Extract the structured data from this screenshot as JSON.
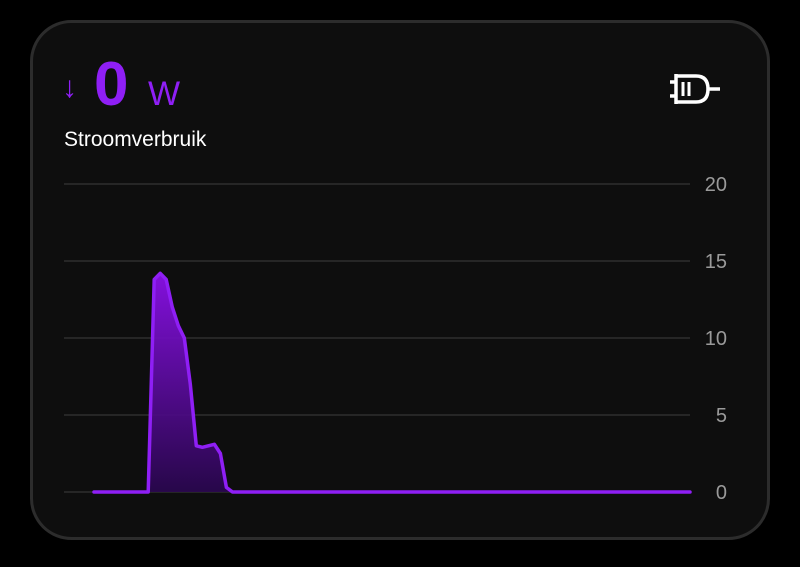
{
  "header": {
    "arrow": "↓",
    "value": "0",
    "unit": "W",
    "name": "Stroomverbruik"
  },
  "chart_data": {
    "type": "line",
    "color": "#8f1ff5",
    "values": [
      0,
      0,
      0,
      0,
      0,
      0,
      0,
      0,
      0,
      0,
      13.8,
      14.2,
      13.8,
      12,
      10.8,
      10,
      7,
      3,
      2.9,
      3,
      3.1,
      2.5,
      0.3,
      0,
      0,
      0,
      0,
      0,
      0,
      0,
      0,
      0,
      0,
      0,
      0,
      0,
      0,
      0,
      0,
      0,
      0,
      0,
      0,
      0,
      0,
      0,
      0,
      0,
      0,
      0,
      0,
      0,
      0,
      0,
      0,
      0,
      0,
      0,
      0,
      0,
      0,
      0,
      0,
      0,
      0,
      0,
      0,
      0,
      0,
      0,
      0,
      0,
      0,
      0,
      0,
      0,
      0,
      0,
      0,
      0,
      0,
      0,
      0,
      0,
      0,
      0,
      0,
      0,
      0,
      0,
      0,
      0,
      0,
      0,
      0,
      0,
      0,
      0,
      0,
      0
    ],
    "ylim": [
      0,
      20
    ],
    "yticks": [
      0,
      5,
      10,
      15,
      20
    ],
    "grid": true
  }
}
